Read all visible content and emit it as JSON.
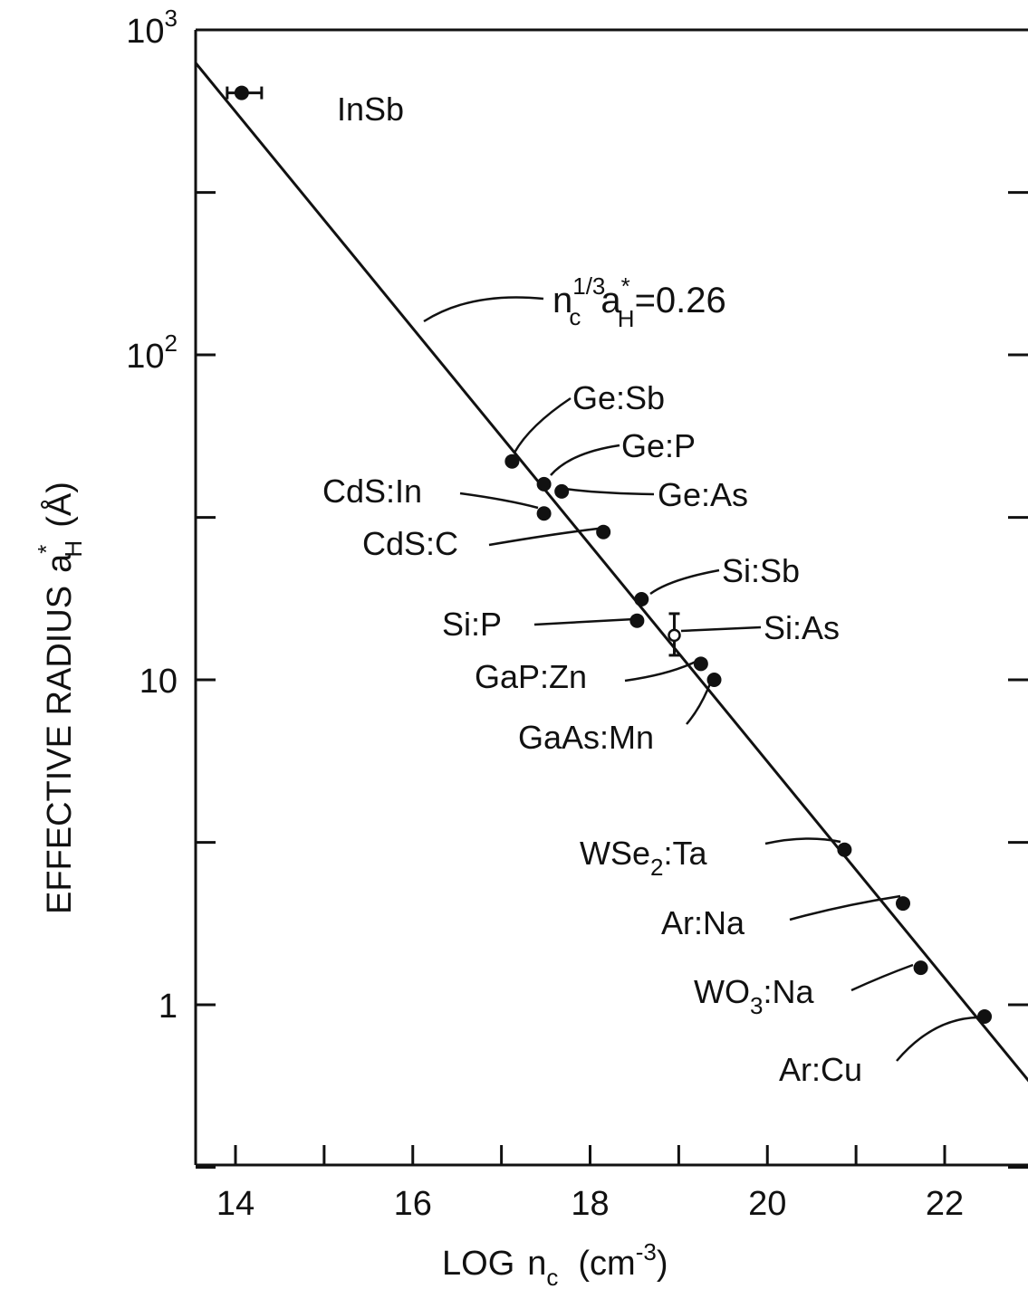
{
  "chart_data": {
    "type": "scatter",
    "x_scale": "linear",
    "y_scale": "log",
    "xlim": [
      13.55,
      23.1
    ],
    "ylim": [
      0.45,
      1000
    ],
    "x_ticks": [
      14,
      16,
      18,
      20,
      22
    ],
    "x_tick_labels": [
      "14",
      "16",
      "18",
      "20",
      "22"
    ],
    "x_minor_ticks": [
      15,
      17,
      19,
      21
    ],
    "y_ticks": [
      {
        "value": 1000,
        "base": "10",
        "exp": "3"
      },
      {
        "value": 100,
        "base": "10",
        "exp": "2"
      },
      {
        "value": 10,
        "base": "10",
        "exp": ""
      },
      {
        "value": 1,
        "base": "1",
        "exp": ""
      }
    ],
    "y_minor_ticks": [
      0.316,
      3.16,
      31.6,
      316
    ],
    "xlabel": {
      "main": "LOG",
      "var": "n",
      "sub": "c",
      "unit_open": "(cm",
      "unit_exp": "-3",
      "unit_close": ")"
    },
    "ylabel": {
      "main": "EFFECTIVE RADIUS",
      "var": "a",
      "star": "*",
      "sub": "H",
      "unit": "(Å)"
    },
    "fit_line": {
      "equation": {
        "n": "n",
        "n_sup": "1/3",
        "n_sub": "c",
        "a": "a",
        "a_sup": "*",
        "a_sub": "H",
        "rhs": "=0.26"
      },
      "constant": 0.26
    },
    "points": [
      {
        "label": "InSb",
        "x": 14.07,
        "y": 640
      },
      {
        "label": "Ge:Sb",
        "x": 17.12,
        "y": 47
      },
      {
        "label": "Ge:P",
        "x": 17.48,
        "y": 40
      },
      {
        "label": "Ge:As",
        "x": 17.68,
        "y": 38
      },
      {
        "label": "CdS:In",
        "x": 17.48,
        "y": 32.5
      },
      {
        "label": "CdS:C",
        "x": 18.15,
        "y": 28.5
      },
      {
        "label": "Si:Sb",
        "x": 18.58,
        "y": 17.7
      },
      {
        "label": "Si:P",
        "x": 18.53,
        "y": 15.2
      },
      {
        "label": "Si:As",
        "x": 18.95,
        "y": 13.7
      },
      {
        "label": "GaP:Zn",
        "x": 19.25,
        "y": 11.2
      },
      {
        "label": "GaAs:Mn",
        "x": 19.4,
        "y": 10.0
      },
      {
        "label": "WSe2:Ta",
        "x": 20.87,
        "y": 3.0
      },
      {
        "label": "Ar:Na",
        "x": 21.53,
        "y": 2.05
      },
      {
        "label": "WO3:Na",
        "x": 21.73,
        "y": 1.3
      },
      {
        "label": "Ar:Cu",
        "x": 22.45,
        "y": 0.92
      }
    ]
  }
}
